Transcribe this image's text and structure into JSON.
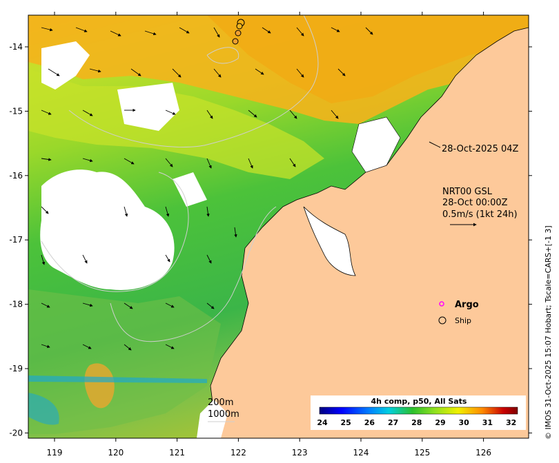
{
  "colors": {
    "land": "#fdc99a",
    "cloud": "#ffffff",
    "warm": "#f5b21a",
    "mid": "#b8e32a",
    "cool": "#3cc03c",
    "cold": "#1fa9c9",
    "contour": "#c8c8c8",
    "argo_marker": "#ff00ff"
  },
  "map": {
    "lon_ticks": [
      "119",
      "120",
      "121",
      "122",
      "123",
      "124",
      "125",
      "126"
    ],
    "lat_ticks": [
      "-14",
      "-15",
      "-16",
      "-17",
      "-18",
      "-19",
      "-20"
    ]
  },
  "annotations": {
    "timestamp": "28-Oct-2025 04Z",
    "product": "NRT00 GSL",
    "product_time": "28-Oct 00:00Z",
    "scale_text": "0.5m/s (1kt 24h)"
  },
  "legend": {
    "argo": "Argo",
    "ship": "Ship"
  },
  "isobaths": {
    "shallow": "200m",
    "deep": "1000m"
  },
  "colorbar": {
    "title": "4h comp, p50, All Sats",
    "labels": [
      "24",
      "25",
      "26",
      "27",
      "28",
      "29",
      "30",
      "31",
      "32"
    ],
    "stops": [
      "#00007f",
      "#0000ff",
      "#007fff",
      "#00cfe0",
      "#2cc02c",
      "#8ee020",
      "#f0f000",
      "#ff8c00",
      "#c80000",
      "#7f0000"
    ]
  },
  "credit": "© IMOS 31-Oct-2025 15:07 Hobart; Tscale=CARS+[-1 3]"
}
